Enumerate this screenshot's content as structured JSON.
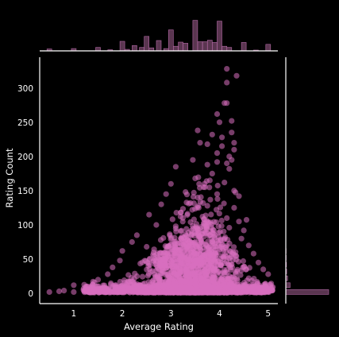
{
  "colors": {
    "background": "#000000",
    "axis_line": "#ffffff",
    "text": "#ffffff",
    "point_fill": "#d96fbf",
    "hist_fill": "#5a3550",
    "hist_stroke": "#b46aa6"
  },
  "chart_data": [
    {
      "id": "joint",
      "type": "scatter",
      "title": "",
      "xlabel": "Average Rating",
      "ylabel": "Rating Count",
      "xlim": [
        0.3,
        5.2
      ],
      "ylim": [
        -15,
        345
      ],
      "xticks": [
        1,
        2,
        3,
        4,
        5
      ],
      "yticks": [
        0,
        50,
        100,
        150,
        200,
        250,
        300
      ],
      "grid": false,
      "point_alpha": 0.55,
      "highlight_points": [
        {
          "x": 4.15,
          "y": 328
        },
        {
          "x": 4.35,
          "y": 318
        },
        {
          "x": 4.15,
          "y": 308
        },
        {
          "x": 4.1,
          "y": 278
        },
        {
          "x": 4.15,
          "y": 278
        },
        {
          "x": 3.95,
          "y": 262
        },
        {
          "x": 4.0,
          "y": 250
        },
        {
          "x": 4.25,
          "y": 252
        },
        {
          "x": 4.25,
          "y": 235
        },
        {
          "x": 3.55,
          "y": 238
        },
        {
          "x": 3.85,
          "y": 232
        },
        {
          "x": 4.05,
          "y": 228
        },
        {
          "x": 4.3,
          "y": 220
        },
        {
          "x": 3.6,
          "y": 220
        },
        {
          "x": 3.75,
          "y": 218
        },
        {
          "x": 4.05,
          "y": 215
        },
        {
          "x": 4.3,
          "y": 210
        },
        {
          "x": 3.95,
          "y": 205
        },
        {
          "x": 4.2,
          "y": 200
        },
        {
          "x": 4.25,
          "y": 195
        },
        {
          "x": 3.45,
          "y": 195
        },
        {
          "x": 3.95,
          "y": 192
        },
        {
          "x": 4.15,
          "y": 190
        },
        {
          "x": 3.1,
          "y": 185
        },
        {
          "x": 3.75,
          "y": 188
        },
        {
          "x": 4.2,
          "y": 182
        },
        {
          "x": 3.85,
          "y": 175
        },
        {
          "x": 3.5,
          "y": 168
        },
        {
          "x": 3.8,
          "y": 165
        },
        {
          "x": 4.1,
          "y": 162
        },
        {
          "x": 3.0,
          "y": 160
        },
        {
          "x": 3.7,
          "y": 155
        },
        {
          "x": 4.3,
          "y": 150
        },
        {
          "x": 3.95,
          "y": 145
        },
        {
          "x": 2.9,
          "y": 145
        },
        {
          "x": 3.3,
          "y": 148
        },
        {
          "x": 3.55,
          "y": 140
        },
        {
          "x": 4.4,
          "y": 142
        },
        {
          "x": 2.8,
          "y": 130
        },
        {
          "x": 3.4,
          "y": 132
        },
        {
          "x": 3.75,
          "y": 128
        },
        {
          "x": 4.3,
          "y": 125
        },
        {
          "x": 2.55,
          "y": 115
        },
        {
          "x": 3.2,
          "y": 118
        },
        {
          "x": 3.65,
          "y": 112
        },
        {
          "x": 4.15,
          "y": 110
        },
        {
          "x": 4.4,
          "y": 105
        },
        {
          "x": 2.7,
          "y": 100
        },
        {
          "x": 3.1,
          "y": 98
        },
        {
          "x": 4.5,
          "y": 92
        },
        {
          "x": 2.3,
          "y": 85
        },
        {
          "x": 3.55,
          "y": 88
        },
        {
          "x": 4.45,
          "y": 80
        },
        {
          "x": 2.2,
          "y": 75
        },
        {
          "x": 4.6,
          "y": 70
        },
        {
          "x": 2.5,
          "y": 68
        },
        {
          "x": 2.0,
          "y": 62
        },
        {
          "x": 4.7,
          "y": 58
        },
        {
          "x": 1.95,
          "y": 48
        },
        {
          "x": 4.8,
          "y": 45
        },
        {
          "x": 1.8,
          "y": 38
        },
        {
          "x": 4.9,
          "y": 35
        },
        {
          "x": 1.7,
          "y": 28
        },
        {
          "x": 5.0,
          "y": 28
        },
        {
          "x": 1.5,
          "y": 20
        },
        {
          "x": 4.6,
          "y": 22
        },
        {
          "x": 0.5,
          "y": 2
        },
        {
          "x": 0.7,
          "y": 3
        },
        {
          "x": 0.8,
          "y": 4
        },
        {
          "x": 1.0,
          "y": 2
        },
        {
          "x": 1.2,
          "y": 5
        },
        {
          "x": 1.0,
          "y": 12
        },
        {
          "x": 1.4,
          "y": 8
        },
        {
          "x": 5.0,
          "y": 3
        },
        {
          "x": 4.9,
          "y": 6
        }
      ]
    },
    {
      "id": "top-marginal",
      "type": "bar",
      "title": "",
      "xlabel": "",
      "ylabel": "",
      "description_axis": "Average Rating bins",
      "bins": [
        {
          "x": 0.5,
          "h": 0.05
        },
        {
          "x": 1.0,
          "h": 0.06
        },
        {
          "x": 1.5,
          "h": 0.09
        },
        {
          "x": 1.75,
          "h": 0.03
        },
        {
          "x": 2.0,
          "h": 0.25
        },
        {
          "x": 2.1,
          "h": 0.04
        },
        {
          "x": 2.25,
          "h": 0.14
        },
        {
          "x": 2.4,
          "h": 0.09
        },
        {
          "x": 2.5,
          "h": 0.38
        },
        {
          "x": 2.6,
          "h": 0.08
        },
        {
          "x": 2.75,
          "h": 0.27
        },
        {
          "x": 2.9,
          "h": 0.06
        },
        {
          "x": 3.0,
          "h": 0.55
        },
        {
          "x": 3.1,
          "h": 0.12
        },
        {
          "x": 3.2,
          "h": 0.23
        },
        {
          "x": 3.3,
          "h": 0.2
        },
        {
          "x": 3.5,
          "h": 0.8
        },
        {
          "x": 3.6,
          "h": 0.24
        },
        {
          "x": 3.7,
          "h": 0.24
        },
        {
          "x": 3.8,
          "h": 0.28
        },
        {
          "x": 3.9,
          "h": 0.22
        },
        {
          "x": 4.0,
          "h": 0.78
        },
        {
          "x": 4.1,
          "h": 0.12
        },
        {
          "x": 4.2,
          "h": 0.09
        },
        {
          "x": 4.5,
          "h": 0.22
        },
        {
          "x": 4.75,
          "h": 0.02
        },
        {
          "x": 5.0,
          "h": 0.17
        }
      ]
    },
    {
      "id": "right-marginal",
      "type": "bar",
      "title": "",
      "xlabel": "",
      "ylabel": "",
      "description_axis": "Rating Count bins",
      "bins": [
        {
          "y": 2,
          "h": 1.0
        },
        {
          "y": 12,
          "h": 0.1
        },
        {
          "y": 22,
          "h": 0.04
        },
        {
          "y": 32,
          "h": 0.02
        },
        {
          "y": 42,
          "h": 0.015
        },
        {
          "y": 52,
          "h": 0.01
        },
        {
          "y": 62,
          "h": 0.008
        }
      ]
    }
  ]
}
